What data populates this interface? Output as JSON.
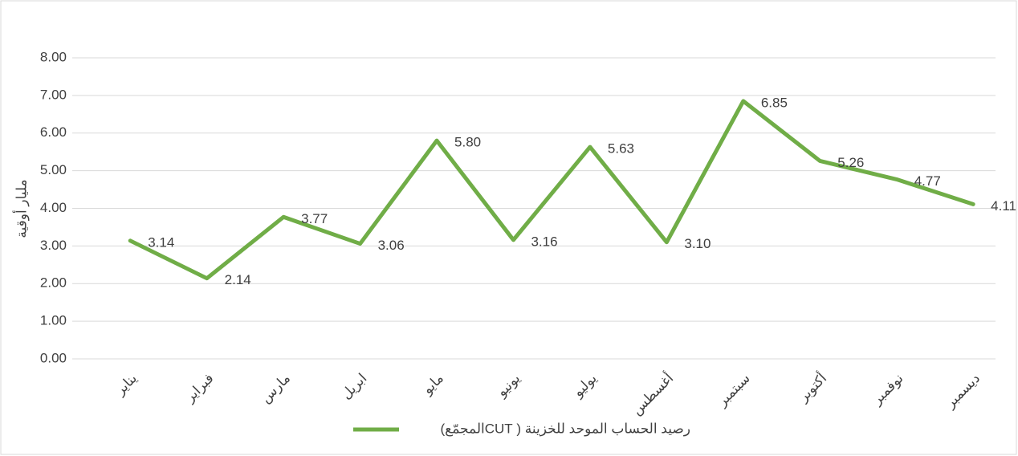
{
  "chart_data": {
    "type": "line",
    "y_label": "مليار أوقية",
    "categories": [
      "يناير",
      "فبراير",
      "مارس",
      "ابريل",
      "مايو",
      "يونيو",
      "يوليو",
      "أغسطس",
      "سبتمبر",
      "أكتوبر",
      "نوفمبر",
      "ديسمبر"
    ],
    "series": [
      {
        "name": "رصيد الحساب الموحد للخزينة ( CUTالمجمّع)",
        "color": "#70ad47",
        "values": [
          3.14,
          2.14,
          3.77,
          3.06,
          5.8,
          3.16,
          5.63,
          3.1,
          6.85,
          5.26,
          4.77,
          4.11
        ],
        "value_labels": [
          "3.14",
          "2.14",
          "3.77",
          "3.06",
          "5.80",
          "3.16",
          "5.63",
          "3.10",
          "6.85",
          "5.26",
          "4.77",
          "4.11"
        ]
      }
    ],
    "ylim": [
      0,
      8
    ],
    "yticks": [
      {
        "value": 0,
        "label": "0.00"
      },
      {
        "value": 1,
        "label": "1.00"
      },
      {
        "value": 2,
        "label": "2.00"
      },
      {
        "value": 3,
        "label": "3.00"
      },
      {
        "value": 4,
        "label": "4.00"
      },
      {
        "value": 5,
        "label": "5.00"
      },
      {
        "value": 6,
        "label": "6.00"
      },
      {
        "value": 7,
        "label": "7.00"
      },
      {
        "value": 8,
        "label": "8.00"
      }
    ],
    "grid": true,
    "legend": "bottom"
  }
}
